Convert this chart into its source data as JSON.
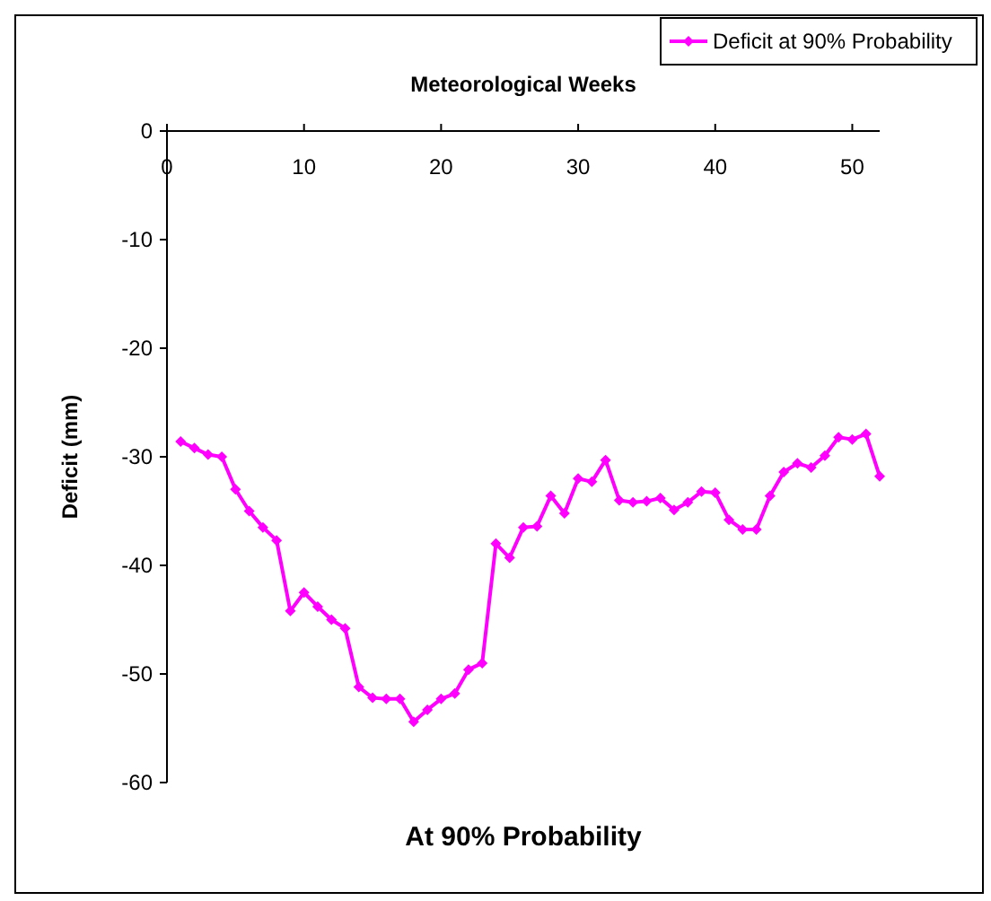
{
  "chart_data": {
    "type": "line",
    "title": "At 90% Probability",
    "xlabel": "Meteorological Weeks",
    "ylabel": "Deficit (mm)",
    "x": [
      1,
      2,
      3,
      4,
      5,
      6,
      7,
      8,
      9,
      10,
      11,
      12,
      13,
      14,
      15,
      16,
      17,
      18,
      19,
      20,
      21,
      22,
      23,
      24,
      25,
      26,
      27,
      28,
      29,
      30,
      31,
      32,
      33,
      34,
      35,
      36,
      37,
      38,
      39,
      40,
      41,
      42,
      43,
      44,
      45,
      46,
      47,
      48,
      49,
      50,
      51,
      52
    ],
    "series": [
      {
        "name": "Deficit at 90% Probability",
        "color": "#ff00ff",
        "values": [
          -28.6,
          -29.2,
          -29.8,
          -30,
          -33,
          -35,
          -36.5,
          -37.7,
          -44.2,
          -42.5,
          -43.8,
          -45,
          -45.8,
          -51.2,
          -52.2,
          -52.3,
          -52.3,
          -54.4,
          -53.3,
          -52.3,
          -51.8,
          -49.6,
          -49,
          -38,
          -39.3,
          -36.5,
          -36.4,
          -33.6,
          -35.2,
          -32,
          -32.3,
          -30.3,
          -34,
          -34.2,
          -34.1,
          -33.8,
          -34.9,
          -34.2,
          -33.2,
          -33.3,
          -35.8,
          -36.7,
          -36.7,
          -33.6,
          -31.4,
          -30.6,
          -31,
          -29.9,
          -28.2,
          -28.4,
          -27.9,
          -31.8
        ]
      }
    ],
    "xlim": [
      0,
      52
    ],
    "xticks": [
      0,
      10,
      20,
      30,
      40,
      50
    ],
    "ylim": [
      -60,
      0
    ],
    "yticks": [
      -60,
      -50,
      -40,
      -30,
      -20,
      -10,
      0
    ],
    "grid": false,
    "legend": "top right",
    "marker": "diamond",
    "line_style": "solid"
  }
}
